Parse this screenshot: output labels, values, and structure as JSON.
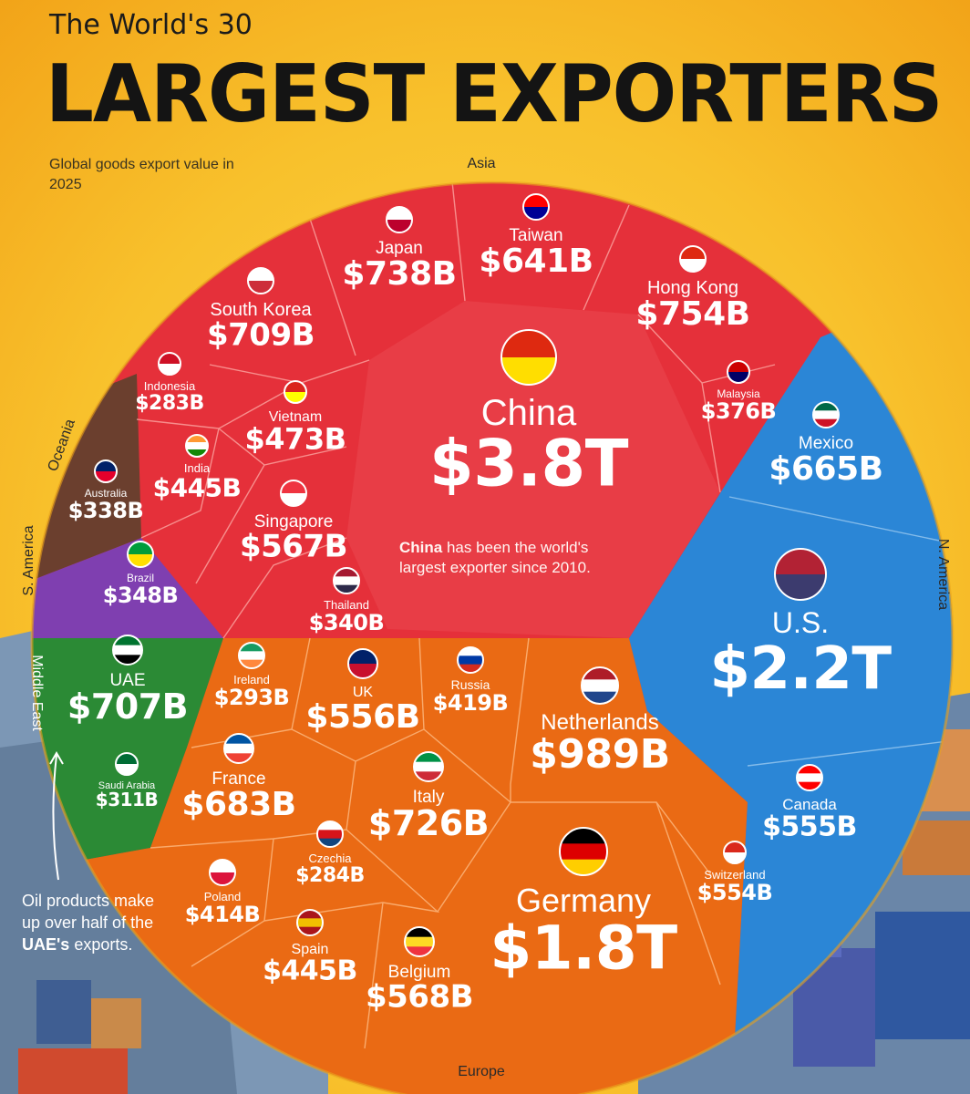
{
  "header": {
    "title_top": "The World's 30",
    "title_main": "LARGEST EXPORTERS",
    "subtitle": "Global goods export value in 2025"
  },
  "note": {
    "emphasis": "UAE's",
    "prefix": "Oil products make up over half of the",
    "suffix": "exports."
  },
  "china_note": {
    "emphasis": "China",
    "text": "has been the world's",
    "line2": "largest exporter since 2010."
  },
  "colors": {
    "asia": "#e5303a",
    "north_america": "#2b86d6",
    "europe": "#ea6a14",
    "middle_east": "#2b8a35",
    "south_america": "#7f3fb0",
    "oceania": "#6b3f2e",
    "background": "#f4b51f"
  },
  "chart_data": {
    "type": "voronoi-treemap",
    "unit": "USD",
    "regions": [
      {
        "name": "Asia",
        "color": "#e5303a"
      },
      {
        "name": "N. America",
        "color": "#2b86d6"
      },
      {
        "name": "Europe",
        "color": "#ea6a14"
      },
      {
        "name": "Middle East",
        "color": "#2b8a35"
      },
      {
        "name": "S. America",
        "color": "#7f3fb0"
      },
      {
        "name": "Oceania",
        "color": "#6b3f2e"
      }
    ],
    "countries": [
      {
        "name": "China",
        "label": "$3.8T",
        "value_billion": 3800,
        "region": "Asia"
      },
      {
        "name": "U.S.",
        "label": "$2.2T",
        "value_billion": 2200,
        "region": "N. America"
      },
      {
        "name": "Germany",
        "label": "$1.8T",
        "value_billion": 1800,
        "region": "Europe"
      },
      {
        "name": "Netherlands",
        "label": "$989B",
        "value_billion": 989,
        "region": "Europe"
      },
      {
        "name": "Hong Kong",
        "label": "$754B",
        "value_billion": 754,
        "region": "Asia"
      },
      {
        "name": "Japan",
        "label": "$738B",
        "value_billion": 738,
        "region": "Asia"
      },
      {
        "name": "Italy",
        "label": "$726B",
        "value_billion": 726,
        "region": "Europe"
      },
      {
        "name": "South Korea",
        "label": "$709B",
        "value_billion": 709,
        "region": "Asia"
      },
      {
        "name": "UAE",
        "label": "$707B",
        "value_billion": 707,
        "region": "Middle East"
      },
      {
        "name": "France",
        "label": "$683B",
        "value_billion": 683,
        "region": "Europe"
      },
      {
        "name": "Mexico",
        "label": "$665B",
        "value_billion": 665,
        "region": "N. America"
      },
      {
        "name": "Taiwan",
        "label": "$641B",
        "value_billion": 641,
        "region": "Asia"
      },
      {
        "name": "Belgium",
        "label": "$568B",
        "value_billion": 568,
        "region": "Europe"
      },
      {
        "name": "Singapore",
        "label": "$567B",
        "value_billion": 567,
        "region": "Asia"
      },
      {
        "name": "UK",
        "label": "$556B",
        "value_billion": 556,
        "region": "Europe"
      },
      {
        "name": "Canada",
        "label": "$555B",
        "value_billion": 555,
        "region": "N. America"
      },
      {
        "name": "Switzerland",
        "label": "$554B",
        "value_billion": 554,
        "region": "Europe"
      },
      {
        "name": "Vietnam",
        "label": "$473B",
        "value_billion": 473,
        "region": "Asia"
      },
      {
        "name": "India",
        "label": "$445B",
        "value_billion": 445,
        "region": "Asia"
      },
      {
        "name": "Spain",
        "label": "$445B",
        "value_billion": 445,
        "region": "Europe"
      },
      {
        "name": "Russia",
        "label": "$419B",
        "value_billion": 419,
        "region": "Europe"
      },
      {
        "name": "Poland",
        "label": "$414B",
        "value_billion": 414,
        "region": "Europe"
      },
      {
        "name": "Malaysia",
        "label": "$376B",
        "value_billion": 376,
        "region": "Asia"
      },
      {
        "name": "Brazil",
        "label": "$348B",
        "value_billion": 348,
        "region": "S. America"
      },
      {
        "name": "Thailand",
        "label": "$340B",
        "value_billion": 340,
        "region": "Asia"
      },
      {
        "name": "Australia",
        "label": "$338B",
        "value_billion": 338,
        "region": "Oceania"
      },
      {
        "name": "Saudi Arabia",
        "label": "$311B",
        "value_billion": 311,
        "region": "Middle East"
      },
      {
        "name": "Ireland",
        "label": "$293B",
        "value_billion": 293,
        "region": "Europe"
      },
      {
        "name": "Czechia",
        "label": "$284B",
        "value_billion": 284,
        "region": "Europe"
      },
      {
        "name": "Indonesia",
        "label": "$283B",
        "value_billion": 283,
        "region": "Asia"
      }
    ]
  }
}
